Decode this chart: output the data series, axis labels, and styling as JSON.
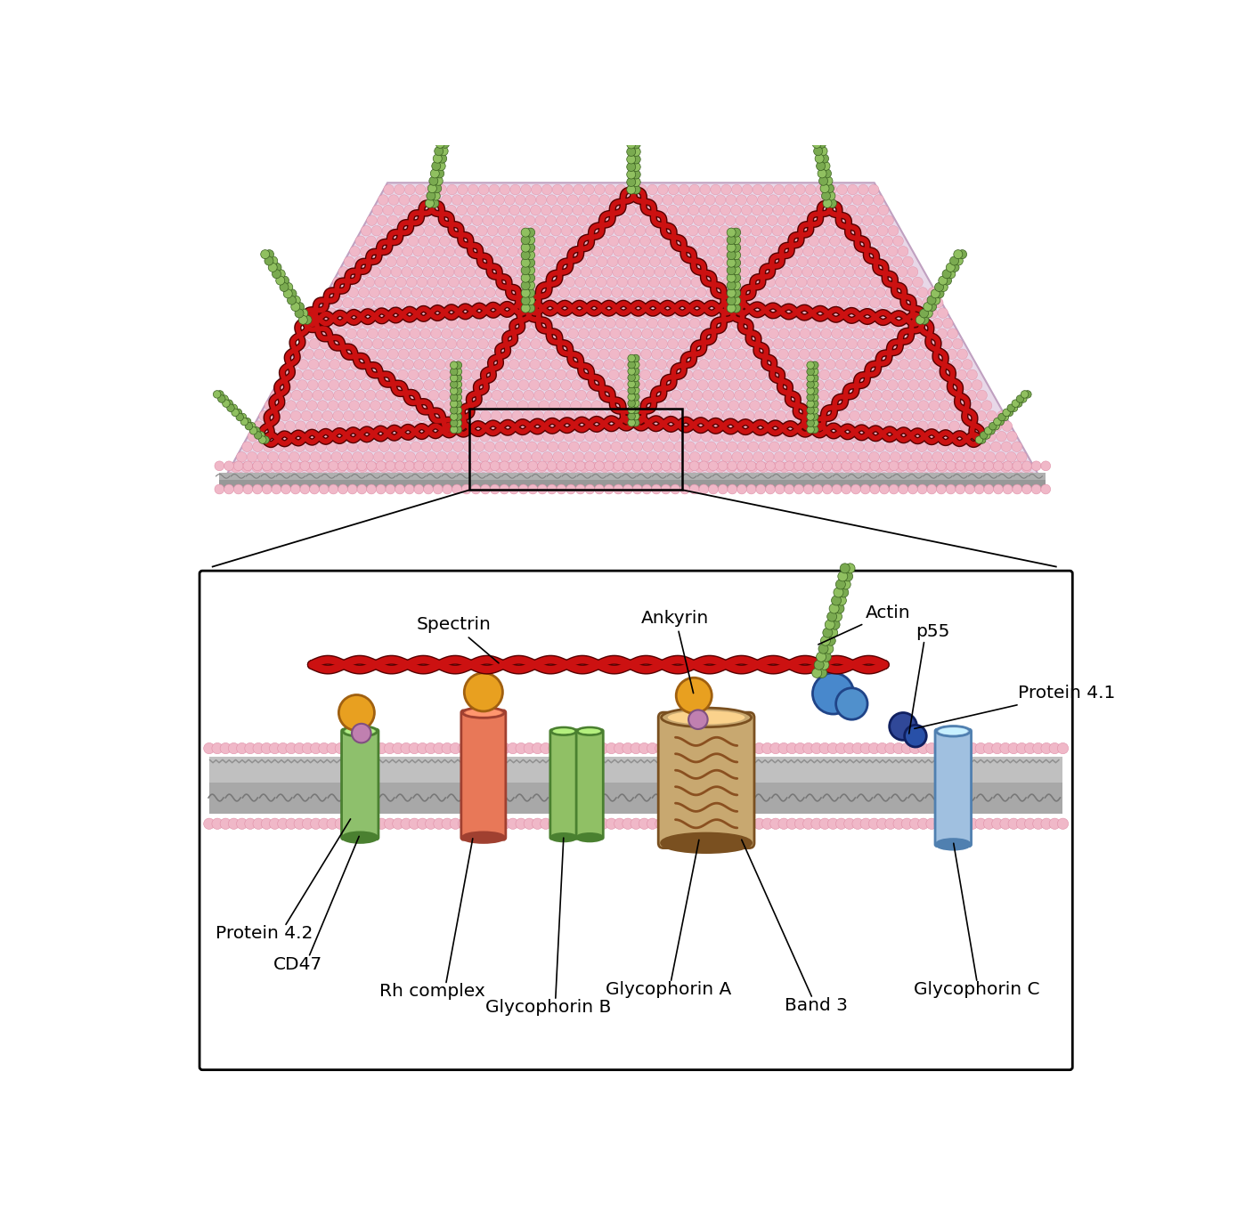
{
  "fig_width": 13.89,
  "fig_height": 13.58,
  "bg_color": "#ffffff",
  "lipid_pink": "#f0b8c8",
  "lipid_pink_ec": "#e090a8",
  "spectrin_red": "#cc1111",
  "spectrin_dark": "#550000",
  "actin_green": "#7aaa50",
  "actin_green_dark": "#3a6020",
  "actin_green_mid": "#90c060",
  "orange_ball": "#e8a020",
  "orange_ball_ec": "#a06010",
  "lilac_ball": "#c080b0",
  "lilac_ball_ec": "#805080",
  "cd47_green": "#8ec06c",
  "cd47_green_ec": "#4a8030",
  "rh_orange": "#e87858",
  "rh_orange_ec": "#a04030",
  "gb_green": "#90c065",
  "gb_green_ec": "#4a8030",
  "ga_tan": "#c8a870",
  "ga_tan_ec": "#7a5020",
  "ga_line": "#8a5020",
  "band3_blue": "#4888cc",
  "band3_blue_ec": "#204488",
  "band3_blue_light": "#90b8e0",
  "protein41_dkblue": "#304898",
  "protein41_dkblue_ec": "#102060",
  "gc_blue": "#a0c0e0",
  "gc_blue_ec": "#5080b0",
  "upper_bg": "#e8d8e8",
  "gray_band1": "#b0b0b0",
  "gray_band2": "#989898",
  "gray_wavy": "#808080",
  "labels": {
    "spectrin": "Spectrin",
    "ankyrin": "Ankyrin",
    "actin": "Actin",
    "p55": "p55",
    "protein41": "Protein 4.1",
    "protein42": "Protein 4.2",
    "cd47": "CD47",
    "rh_complex": "Rh complex",
    "glycophorinB": "Glycophorin B",
    "glycophorinA": "Glycophorin A",
    "band3": "Band 3",
    "glycophorinC": "Glycophorin C"
  }
}
